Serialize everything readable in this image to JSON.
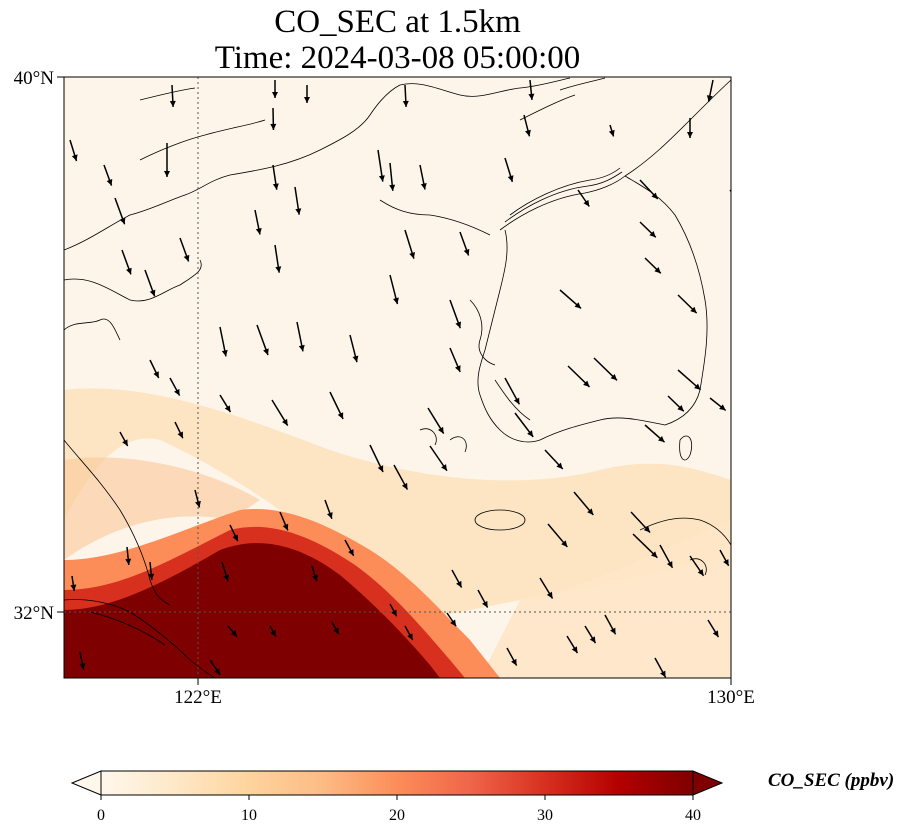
{
  "title": {
    "line1": "CO_SEC at 1.5km",
    "line2": "Time: 2024-03-08 05:00:00"
  },
  "map": {
    "variable": "CO_SEC",
    "level": "1.5km",
    "lon_range": [
      120,
      130
    ],
    "lat_range": [
      31,
      40
    ],
    "x_ticks": [
      "122°E",
      "130°E"
    ],
    "y_ticks": [
      "40°N",
      "32°N"
    ],
    "gridlines": "dotted at 122°E and 32°N",
    "features": [
      "coastlines",
      "wind vectors",
      "filled concentration field"
    ]
  },
  "colorbar": {
    "label": "CO_SEC (ppbv)",
    "min": 0,
    "max": 40,
    "ticks": [
      "0",
      "10",
      "20",
      "30",
      "40"
    ],
    "extend": "both",
    "colors": [
      "#fff7ec",
      "#fee8c8",
      "#fdd49e",
      "#fdbb84",
      "#fc8d59",
      "#ef6548",
      "#d7301f",
      "#b30000",
      "#7f0000"
    ]
  }
}
